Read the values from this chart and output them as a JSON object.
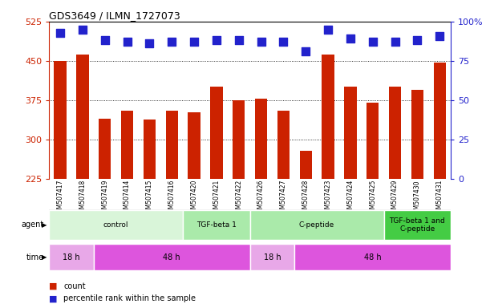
{
  "title": "GDS3649 / ILMN_1727073",
  "samples": [
    "GSM507417",
    "GSM507418",
    "GSM507419",
    "GSM507414",
    "GSM507415",
    "GSM507416",
    "GSM507420",
    "GSM507421",
    "GSM507422",
    "GSM507426",
    "GSM507427",
    "GSM507428",
    "GSM507423",
    "GSM507424",
    "GSM507425",
    "GSM507429",
    "GSM507430",
    "GSM507431"
  ],
  "counts": [
    449,
    462,
    340,
    355,
    338,
    355,
    352,
    400,
    375,
    378,
    355,
    278,
    462,
    400,
    370,
    400,
    395,
    447
  ],
  "percentile_ranks": [
    93,
    95,
    88,
    87,
    86,
    87,
    87,
    88,
    88,
    87,
    87,
    81,
    95,
    89,
    87,
    87,
    88,
    91
  ],
  "ylim_left": [
    225,
    525
  ],
  "ylim_right": [
    0,
    100
  ],
  "yticks_left": [
    225,
    300,
    375,
    450,
    525
  ],
  "yticks_right": [
    0,
    25,
    50,
    75,
    100
  ],
  "ytick_labels_right": [
    "0",
    "25",
    "50",
    "75",
    "100%"
  ],
  "bar_color": "#cc2200",
  "dot_color": "#2222cc",
  "agent_groups": [
    {
      "label": "control",
      "start": 0,
      "end": 6,
      "color": "#d9f5d9"
    },
    {
      "label": "TGF-beta 1",
      "start": 6,
      "end": 9,
      "color": "#aaeaaa"
    },
    {
      "label": "C-peptide",
      "start": 9,
      "end": 15,
      "color": "#aaeaaa"
    },
    {
      "label": "TGF-beta 1 and\nC-peptide",
      "start": 15,
      "end": 18,
      "color": "#44cc44"
    }
  ],
  "time_groups": [
    {
      "label": "18 h",
      "start": 0,
      "end": 2,
      "color": "#e8a8e8"
    },
    {
      "label": "48 h",
      "start": 2,
      "end": 9,
      "color": "#dd55dd"
    },
    {
      "label": "18 h",
      "start": 9,
      "end": 11,
      "color": "#e8a8e8"
    },
    {
      "label": "48 h",
      "start": 11,
      "end": 18,
      "color": "#dd55dd"
    }
  ],
  "bar_width": 0.55,
  "dot_size": 55,
  "dot_marker": "s"
}
